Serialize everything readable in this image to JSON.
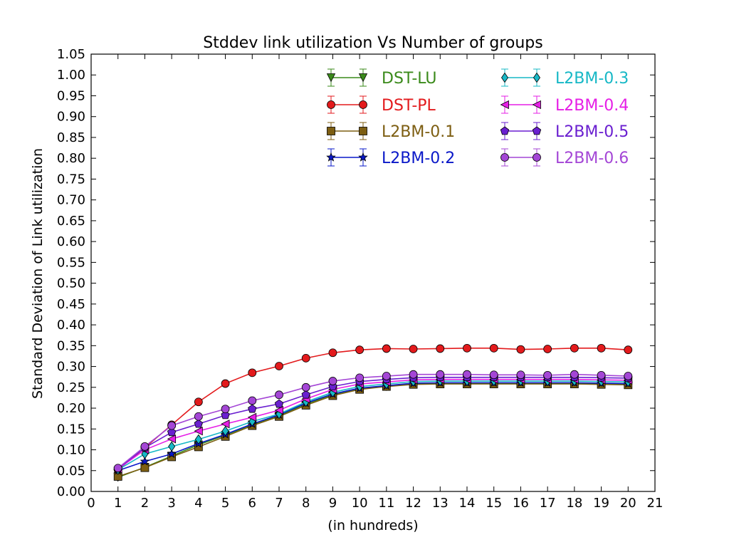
{
  "chart_data": {
    "type": "line",
    "title": "Stddev link utilization Vs Number of groups",
    "xlabel": "(in hundreds)",
    "ylabel": "Standard Deviation of Link utilization",
    "xlim": [
      0,
      21
    ],
    "ylim": [
      0,
      1.05
    ],
    "xticks": [
      "0",
      "1",
      "2",
      "3",
      "4",
      "5",
      "6",
      "7",
      "8",
      "9",
      "10",
      "11",
      "12",
      "13",
      "14",
      "15",
      "16",
      "17",
      "18",
      "19",
      "20",
      "21"
    ],
    "yticks": [
      "0.00",
      "0.05",
      "0.10",
      "0.15",
      "0.20",
      "0.25",
      "0.30",
      "0.35",
      "0.40",
      "0.45",
      "0.50",
      "0.55",
      "0.60",
      "0.65",
      "0.70",
      "0.75",
      "0.80",
      "0.85",
      "0.90",
      "0.95",
      "1.00",
      "1.05"
    ],
    "grid": false,
    "legend_position": "top-right",
    "x": [
      1,
      2,
      3,
      4,
      5,
      6,
      7,
      8,
      9,
      10,
      11,
      12,
      13,
      14,
      15,
      16,
      17,
      18,
      19,
      20
    ],
    "series": [
      {
        "name": "DST-LU",
        "color": "#3a8a1a",
        "marker": "triangle-down",
        "values": [
          0.034,
          0.058,
          0.085,
          0.112,
          0.135,
          0.16,
          0.182,
          0.21,
          0.232,
          0.246,
          0.252,
          0.258,
          0.259,
          0.259,
          0.259,
          0.259,
          0.259,
          0.259,
          0.258,
          0.257
        ]
      },
      {
        "name": "DST-PL",
        "color": "#e31a1c",
        "marker": "circle",
        "values": [
          0.052,
          0.105,
          0.16,
          0.215,
          0.259,
          0.285,
          0.301,
          0.32,
          0.333,
          0.34,
          0.343,
          0.342,
          0.343,
          0.344,
          0.344,
          0.341,
          0.342,
          0.344,
          0.344,
          0.34
        ]
      },
      {
        "name": "L2BM-0.1",
        "color": "#7d5e12",
        "marker": "square",
        "values": [
          0.036,
          0.057,
          0.083,
          0.107,
          0.132,
          0.158,
          0.18,
          0.207,
          0.23,
          0.245,
          0.252,
          0.257,
          0.258,
          0.258,
          0.258,
          0.258,
          0.258,
          0.258,
          0.257,
          0.256
        ]
      },
      {
        "name": "L2BM-0.2",
        "color": "#0a18c8",
        "marker": "star",
        "values": [
          0.05,
          0.072,
          0.09,
          0.115,
          0.137,
          0.162,
          0.184,
          0.212,
          0.234,
          0.248,
          0.254,
          0.26,
          0.261,
          0.261,
          0.261,
          0.261,
          0.261,
          0.261,
          0.26,
          0.259
        ]
      },
      {
        "name": "L2BM-0.3",
        "color": "#17b8c6",
        "marker": "diamond",
        "values": [
          0.052,
          0.09,
          0.108,
          0.125,
          0.145,
          0.168,
          0.186,
          0.215,
          0.238,
          0.252,
          0.258,
          0.264,
          0.265,
          0.265,
          0.265,
          0.265,
          0.265,
          0.265,
          0.264,
          0.263
        ]
      },
      {
        "name": "L2BM-0.4",
        "color": "#e61ee6",
        "marker": "triangle-left",
        "values": [
          0.054,
          0.1,
          0.126,
          0.145,
          0.162,
          0.178,
          0.195,
          0.222,
          0.245,
          0.258,
          0.263,
          0.268,
          0.269,
          0.269,
          0.269,
          0.269,
          0.269,
          0.269,
          0.268,
          0.267
        ]
      },
      {
        "name": "L2BM-0.5",
        "color": "#6a1fd0",
        "marker": "pentagon",
        "values": [
          0.055,
          0.105,
          0.142,
          0.162,
          0.183,
          0.198,
          0.21,
          0.232,
          0.252,
          0.264,
          0.269,
          0.273,
          0.274,
          0.274,
          0.274,
          0.274,
          0.274,
          0.274,
          0.273,
          0.272
        ]
      },
      {
        "name": "L2BM-0.6",
        "color": "#a446d6",
        "marker": "circle",
        "values": [
          0.056,
          0.108,
          0.158,
          0.18,
          0.198,
          0.218,
          0.232,
          0.25,
          0.265,
          0.273,
          0.277,
          0.281,
          0.281,
          0.281,
          0.28,
          0.28,
          0.279,
          0.281,
          0.279,
          0.277
        ]
      }
    ]
  }
}
